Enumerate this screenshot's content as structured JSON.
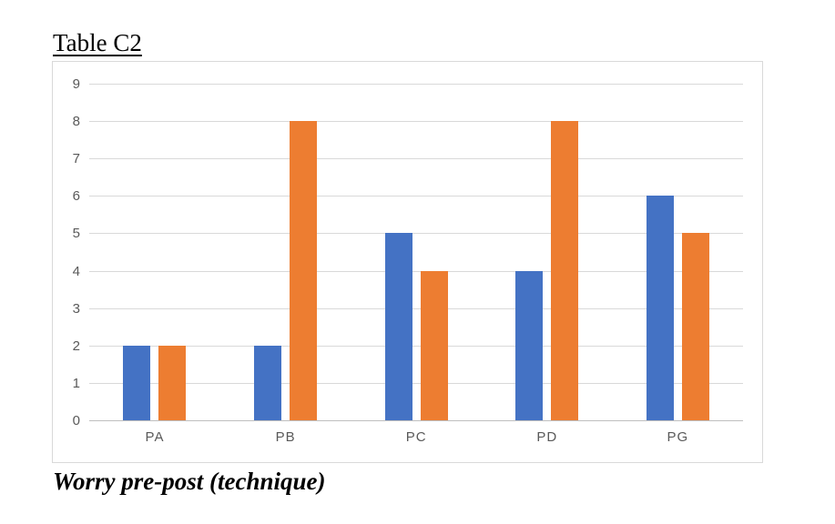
{
  "page": {
    "title": "Table C2",
    "caption": "Worry pre-post (technique)"
  },
  "chart_data": {
    "type": "bar",
    "title": "Table C2",
    "caption": "Worry pre-post (technique)",
    "categories": [
      "PA",
      "PB",
      "PC",
      "PD",
      "PG"
    ],
    "series": [
      {
        "name": "Series 1",
        "color": "#4472C4",
        "values": [
          2,
          2,
          5,
          4,
          6
        ]
      },
      {
        "name": "Series 2",
        "color": "#ED7D31",
        "values": [
          2,
          8,
          4,
          8,
          5
        ]
      }
    ],
    "ylim": [
      0,
      9
    ],
    "ytick_step": 1,
    "yticks": [
      0,
      1,
      2,
      3,
      4,
      5,
      6,
      7,
      8,
      9
    ],
    "grid": true,
    "legend_position": "none",
    "xlabel": "",
    "ylabel": "",
    "colors": {
      "gridline": "#d9d9d9",
      "axis_line": "#bfbfbf",
      "tick_label": "#595959",
      "frame_border": "#d9d9d9",
      "background": "#ffffff"
    }
  }
}
